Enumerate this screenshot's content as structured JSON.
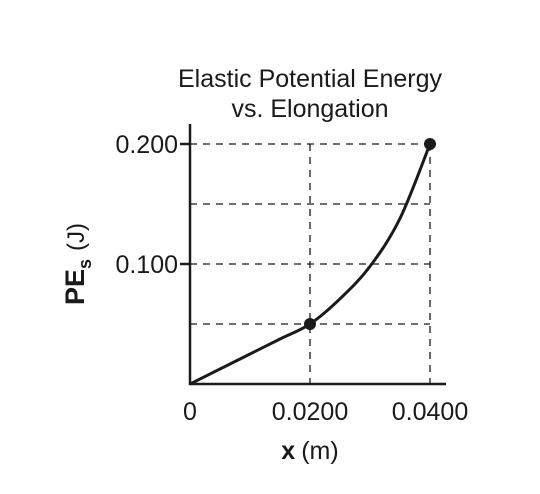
{
  "chart_data": {
    "type": "line",
    "title_lines": [
      "Elastic Potential Energy",
      "vs. Elongation"
    ],
    "xlabel_bold": "x",
    "xlabel_rest": "(m)",
    "ylabel_main": "PE",
    "ylabel_sub": "s",
    "ylabel_unit": "(J)",
    "xlim": [
      0,
      0.04
    ],
    "ylim": [
      0,
      0.2
    ],
    "x_ticks": [
      {
        "value": 0,
        "label": "0"
      },
      {
        "value": 0.02,
        "label": "0.0200"
      },
      {
        "value": 0.04,
        "label": "0.0400"
      }
    ],
    "y_ticks": [
      {
        "value": 0.1,
        "label": "0.100"
      },
      {
        "value": 0.2,
        "label": "0.200"
      }
    ],
    "grid_x": [
      0.02,
      0.04
    ],
    "grid_y": [
      0.05,
      0.1,
      0.15,
      0.2
    ],
    "series": [
      {
        "x": [
          0,
          0.005,
          0.01,
          0.015,
          0.02,
          0.025,
          0.03,
          0.035,
          0.04
        ],
        "y": [
          0,
          0.0125,
          0.025,
          0.0375,
          0.05,
          0.071,
          0.098,
          0.138,
          0.2
        ]
      }
    ],
    "points": [
      {
        "x": 0.02,
        "y": 0.05
      },
      {
        "x": 0.04,
        "y": 0.2
      }
    ]
  }
}
